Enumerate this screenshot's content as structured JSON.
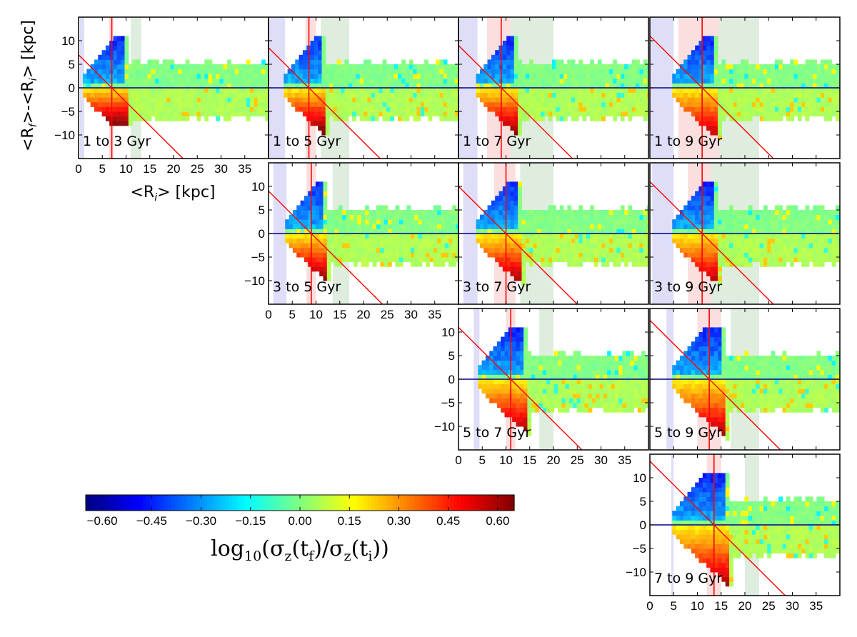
{
  "figure": {
    "ylabel": "<R_f>-<R_i> [kpc]",
    "xlabel": "<R_i> [kpc]"
  },
  "colorbar": {
    "label": "log10(σz(tf)/σz(ti))",
    "vmin": -0.65,
    "vmax": 0.65,
    "ticks": [
      -0.6,
      -0.45,
      -0.3,
      -0.15,
      0.0,
      0.15,
      0.3,
      0.45,
      0.6
    ],
    "tick_labels": [
      "−0.60",
      "−0.45",
      "−0.30",
      "−0.15",
      "0.00",
      "0.15",
      "0.30",
      "0.45",
      "0.60"
    ],
    "colormap": "jet"
  },
  "colors": {
    "zero_line": "#00008b",
    "guide_line": "#ff0000",
    "inner_band": "#c8c8f5",
    "mid_band": "#f8c8c8",
    "outer_band": "#c8e1c8"
  },
  "chart_data": [
    {
      "type": "heatmap",
      "label": "1 to 3 Gyr",
      "row": 0,
      "col": 0,
      "guide_x": 7,
      "bands": [
        [
          0.3,
          1.2
        ],
        [
          6.4,
          7.4
        ],
        [
          11,
          13.2
        ]
      ],
      "xlim": [
        0,
        40
      ],
      "ylim": [
        -15,
        15
      ],
      "xticks": [
        0,
        5,
        10,
        15,
        20,
        25,
        30,
        35
      ],
      "yticks": [
        10,
        5,
        0,
        -5,
        -10
      ]
    },
    {
      "type": "heatmap",
      "label": "1 to 5 Gyr",
      "row": 0,
      "col": 1,
      "guide_x": 8.5,
      "bands": [
        [
          0.2,
          3.5
        ],
        [
          7.8,
          10
        ],
        [
          11,
          17
        ]
      ],
      "xlim": [
        0,
        40
      ],
      "ylim": [
        -15,
        15
      ]
    },
    {
      "type": "heatmap",
      "label": "1 to 7 Gyr",
      "row": 0,
      "col": 2,
      "guide_x": 9,
      "bands": [
        [
          0.2,
          4
        ],
        [
          6,
          11
        ],
        [
          11,
          20
        ]
      ],
      "xlim": [
        0,
        40
      ],
      "ylim": [
        -15,
        15
      ]
    },
    {
      "type": "heatmap",
      "label": "1 to 9 Gyr",
      "row": 0,
      "col": 3,
      "guide_x": 11,
      "bands": [
        [
          0.2,
          5
        ],
        [
          6,
          14.5
        ],
        [
          14.5,
          23
        ]
      ],
      "xlim": [
        0,
        40
      ],
      "ylim": [
        -15,
        15
      ]
    },
    {
      "type": "heatmap",
      "label": "3 to 5 Gyr",
      "row": 1,
      "col": 1,
      "guide_x": 9,
      "bands": [
        [
          1,
          3.8
        ],
        [
          8,
          10
        ],
        [
          13.5,
          17
        ]
      ],
      "xlim": [
        0,
        40
      ],
      "ylim": [
        -15,
        15
      ],
      "xticks": [
        0,
        5,
        10,
        15,
        20,
        25,
        30,
        35
      ],
      "yticks": [
        10,
        5,
        0,
        -5,
        -10
      ]
    },
    {
      "type": "heatmap",
      "label": "3 to 7 Gyr",
      "row": 1,
      "col": 2,
      "guide_x": 10,
      "bands": [
        [
          1,
          4
        ],
        [
          7.5,
          12
        ],
        [
          13,
          20
        ]
      ],
      "xlim": [
        0,
        40
      ],
      "ylim": [
        -15,
        15
      ]
    },
    {
      "type": "heatmap",
      "label": "3 to 9 Gyr",
      "row": 1,
      "col": 3,
      "guide_x": 11,
      "bands": [
        [
          0.5,
          5
        ],
        [
          8,
          13
        ],
        [
          13,
          23
        ]
      ],
      "xlim": [
        0,
        40
      ],
      "ylim": [
        -15,
        15
      ]
    },
    {
      "type": "heatmap",
      "label": "5 to 7 Gyr",
      "row": 2,
      "col": 2,
      "guide_x": 11,
      "bands": [
        [
          3.2,
          4.4
        ],
        [
          10,
          12
        ],
        [
          17,
          20
        ]
      ],
      "xlim": [
        0,
        40
      ],
      "ylim": [
        -15,
        15
      ],
      "xticks": [
        0,
        5,
        10,
        15,
        20,
        25,
        30,
        35
      ],
      "yticks": [
        10,
        5,
        0,
        -5,
        -10
      ]
    },
    {
      "type": "heatmap",
      "label": "5 to 9 Gyr",
      "row": 2,
      "col": 3,
      "guide_x": 12.5,
      "bands": [
        [
          3.5,
          5
        ],
        [
          10,
          15
        ],
        [
          17,
          23
        ]
      ],
      "xlim": [
        0,
        40
      ],
      "ylim": [
        -15,
        15
      ]
    },
    {
      "type": "heatmap",
      "label": "7 to 9 Gyr",
      "row": 3,
      "col": 3,
      "guide_x": 13.5,
      "bands": [
        [
          4.5,
          5
        ],
        [
          12,
          15
        ],
        [
          20,
          23
        ]
      ],
      "xlim": [
        0,
        40
      ],
      "ylim": [
        -15,
        15
      ],
      "xticks": [
        0,
        5,
        10,
        15,
        20,
        25,
        30,
        35
      ],
      "yticks": [
        10,
        5,
        0,
        -5,
        -10
      ]
    }
  ]
}
